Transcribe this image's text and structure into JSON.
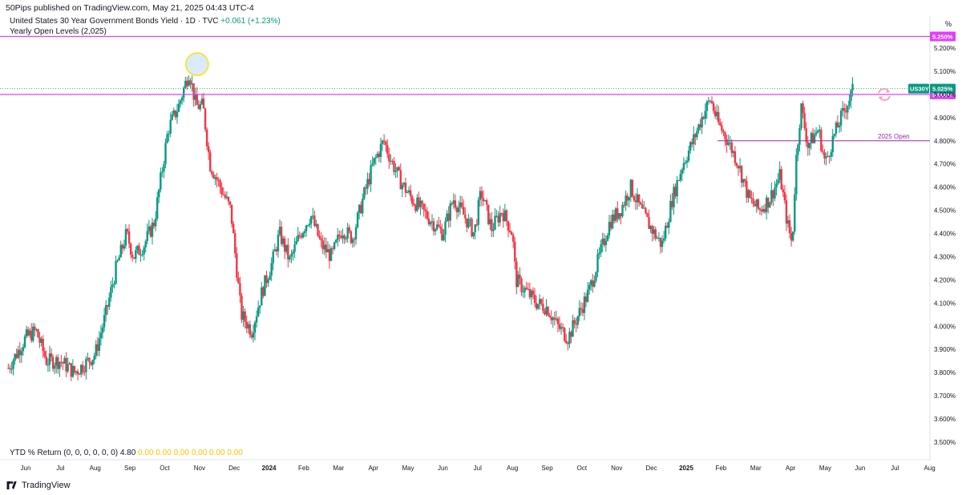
{
  "publisher_line": "50Pips published on TradingView.com, May 21, 2025 04:43 UTC-4",
  "symbol_title": "United States 30 Year Government Bonds Yield · 1D · TVC",
  "symbol_change": "+0.061 (+1.23%)",
  "indicator_title": "Yearly Open Levels (2,025)",
  "percent_unit": "%",
  "ytd_label": "YTD % Return (0, 0, 0, 0, 0, 0)",
  "ytd_first_value": "4.80",
  "ytd_values": [
    "0.00",
    "0.00",
    "0.00",
    "0.00",
    "0.00",
    "0.00"
  ],
  "footer_brand": "TradingView",
  "icons": [
    "tradingview-logo-icon",
    "refresh-icon"
  ],
  "colors": {
    "up": "#089981",
    "down": "#f23645",
    "level_line": "#e040fb",
    "last_price": "#089981",
    "highlight_circle": "#d8e8ff",
    "highlight_stroke": "#f5e600",
    "ytd_values": "#f7c400"
  },
  "chart_data": {
    "type": "candlestick",
    "symbol": "US30Y",
    "interval": "1D",
    "ylim": [
      3.5,
      5.28
    ],
    "y_ticks": [
      "5.200%",
      "5.100%",
      "5.000%",
      "4.900%",
      "4.800%",
      "4.700%",
      "4.600%",
      "4.500%",
      "4.400%",
      "4.300%",
      "4.200%",
      "4.100%",
      "4.000%",
      "3.900%",
      "3.800%",
      "3.700%",
      "3.600%",
      "3.500%"
    ],
    "x_ticks": [
      {
        "label": "Jun",
        "bold": false
      },
      {
        "label": "Jul",
        "bold": false
      },
      {
        "label": "Aug",
        "bold": false
      },
      {
        "label": "Sep",
        "bold": false
      },
      {
        "label": "Oct",
        "bold": false
      },
      {
        "label": "Nov",
        "bold": false
      },
      {
        "label": "Dec",
        "bold": false
      },
      {
        "label": "2024",
        "bold": true
      },
      {
        "label": "Feb",
        "bold": false
      },
      {
        "label": "Mar",
        "bold": false
      },
      {
        "label": "Apr",
        "bold": false
      },
      {
        "label": "May",
        "bold": false
      },
      {
        "label": "Jun",
        "bold": false
      },
      {
        "label": "Jul",
        "bold": false
      },
      {
        "label": "Aug",
        "bold": false
      },
      {
        "label": "Sep",
        "bold": false
      },
      {
        "label": "Oct",
        "bold": false
      },
      {
        "label": "Nov",
        "bold": false
      },
      {
        "label": "Dec",
        "bold": false
      },
      {
        "label": "2025",
        "bold": true
      },
      {
        "label": "Feb",
        "bold": false
      },
      {
        "label": "Mar",
        "bold": false
      },
      {
        "label": "Apr",
        "bold": false
      },
      {
        "label": "May",
        "bold": false
      },
      {
        "label": "Jun",
        "bold": false
      },
      {
        "label": "Jul",
        "bold": false
      },
      {
        "label": "Aug",
        "bold": false
      }
    ],
    "x_tick_months_index": [
      0,
      1,
      2,
      3,
      4,
      5,
      6,
      7,
      8,
      9,
      10,
      11,
      12,
      13,
      14,
      15,
      16,
      17,
      18,
      19,
      20,
      21,
      22,
      23,
      24,
      25,
      26
    ],
    "price_path_months": [
      [
        -0.5,
        3.82
      ],
      [
        0.0,
        3.95
      ],
      [
        0.3,
        3.98
      ],
      [
        0.6,
        3.85
      ],
      [
        1.0,
        3.85
      ],
      [
        1.4,
        3.8
      ],
      [
        1.8,
        3.85
      ],
      [
        2.0,
        3.88
      ],
      [
        2.3,
        4.05
      ],
      [
        2.6,
        4.25
      ],
      [
        2.9,
        4.4
      ],
      [
        3.1,
        4.3
      ],
      [
        3.4,
        4.35
      ],
      [
        3.7,
        4.45
      ],
      [
        3.9,
        4.65
      ],
      [
        4.1,
        4.85
      ],
      [
        4.4,
        4.95
      ],
      [
        4.7,
        5.1
      ],
      [
        4.9,
        4.95
      ],
      [
        5.1,
        4.95
      ],
      [
        5.3,
        4.7
      ],
      [
        5.6,
        4.6
      ],
      [
        5.9,
        4.5
      ],
      [
        6.0,
        4.35
      ],
      [
        6.2,
        4.05
      ],
      [
        6.5,
        3.98
      ],
      [
        6.8,
        4.15
      ],
      [
        7.1,
        4.28
      ],
      [
        7.3,
        4.4
      ],
      [
        7.6,
        4.28
      ],
      [
        7.9,
        4.4
      ],
      [
        8.2,
        4.48
      ],
      [
        8.5,
        4.35
      ],
      [
        8.8,
        4.3
      ],
      [
        9.1,
        4.42
      ],
      [
        9.4,
        4.38
      ],
      [
        9.7,
        4.55
      ],
      [
        10.0,
        4.7
      ],
      [
        10.3,
        4.8
      ],
      [
        10.5,
        4.72
      ],
      [
        10.8,
        4.62
      ],
      [
        11.1,
        4.55
      ],
      [
        11.4,
        4.5
      ],
      [
        11.7,
        4.45
      ],
      [
        12.0,
        4.4
      ],
      [
        12.3,
        4.55
      ],
      [
        12.6,
        4.48
      ],
      [
        12.9,
        4.4
      ],
      [
        13.1,
        4.58
      ],
      [
        13.4,
        4.42
      ],
      [
        13.7,
        4.5
      ],
      [
        14.0,
        4.4
      ],
      [
        14.1,
        4.2
      ],
      [
        14.4,
        4.15
      ],
      [
        14.7,
        4.1
      ],
      [
        15.0,
        4.08
      ],
      [
        15.3,
        4.0
      ],
      [
        15.6,
        3.95
      ],
      [
        15.9,
        4.05
      ],
      [
        16.2,
        4.15
      ],
      [
        16.5,
        4.3
      ],
      [
        16.8,
        4.45
      ],
      [
        17.1,
        4.5
      ],
      [
        17.4,
        4.6
      ],
      [
        17.7,
        4.5
      ],
      [
        18.0,
        4.42
      ],
      [
        18.3,
        4.35
      ],
      [
        18.6,
        4.55
      ],
      [
        18.9,
        4.7
      ],
      [
        19.2,
        4.8
      ],
      [
        19.5,
        4.92
      ],
      [
        19.7,
        4.98
      ],
      [
        19.9,
        4.88
      ],
      [
        20.2,
        4.8
      ],
      [
        20.5,
        4.7
      ],
      [
        20.8,
        4.55
      ],
      [
        21.1,
        4.5
      ],
      [
        21.4,
        4.55
      ],
      [
        21.7,
        4.65
      ],
      [
        21.9,
        4.45
      ],
      [
        22.05,
        4.35
      ],
      [
        22.15,
        4.7
      ],
      [
        22.3,
        4.95
      ],
      [
        22.5,
        4.78
      ],
      [
        22.8,
        4.85
      ],
      [
        23.0,
        4.7
      ],
      [
        23.2,
        4.8
      ],
      [
        23.4,
        4.88
      ],
      [
        23.6,
        4.95
      ],
      [
        23.8,
        5.02
      ]
    ],
    "levels": [
      {
        "value": 5.25,
        "label": "5.250%"
      },
      {
        "value": 5.0,
        "label": "5.000%"
      },
      {
        "value": 4.8,
        "label": "2025 Open"
      }
    ],
    "last_price": {
      "symbol": "US30Y",
      "value": 5.025,
      "label": "5.025%"
    },
    "highlight_peak": {
      "month_index": 5.0,
      "value": 5.12
    }
  }
}
